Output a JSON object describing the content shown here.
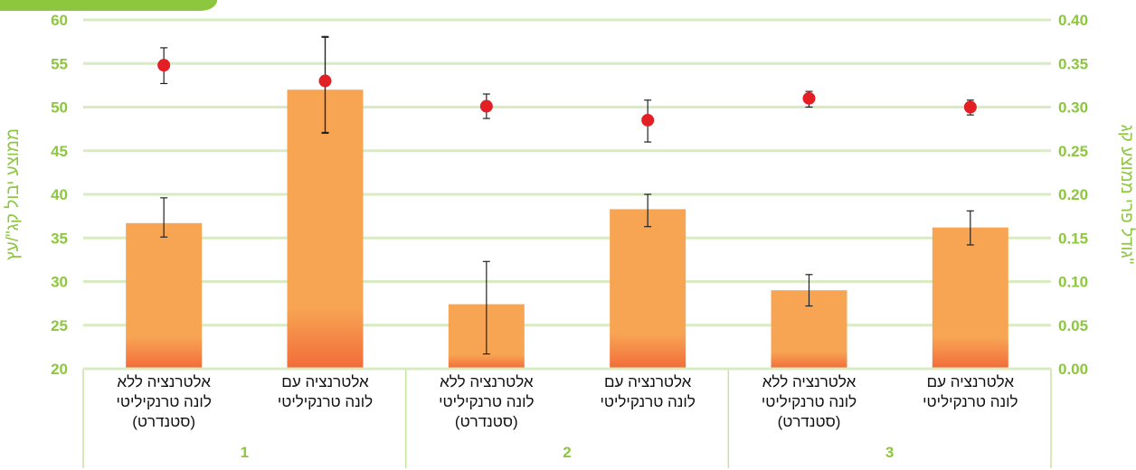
{
  "chart_data": {
    "type": "bar",
    "categories": [
      "אלטרנציה ללא\nלונה טרנקיליטי\n(סטנדרט)",
      "אלטרנציה עם\nלונה טרנקיליטי",
      "אלטרנציה ללא\nלונה טרנקיליטי\n(סטנדרט)",
      "אלטרנציה עם\nלונה טרנקיליטי",
      "אלטרנציה ללא\nלונה טרנקיליטי\n(סטנדרט)",
      "אלטרנציה עם\nלונה טרנקיליטי"
    ],
    "groups": [
      "1",
      "2",
      "3"
    ],
    "ylabel": "ממוצע יבול קג\"/עץ",
    "y2label": "גודל פרי ממוצע קג\"",
    "ylim": [
      20,
      60
    ],
    "yticks": [
      "20",
      "25",
      "30",
      "35",
      "40",
      "45",
      "50",
      "55",
      "60"
    ],
    "y2lim": [
      0,
      0.4
    ],
    "y2ticks": [
      "0.00",
      "0.05",
      "0.10",
      "0.15",
      "0.20",
      "0.25",
      "0.30",
      "0.35",
      "0.40"
    ],
    "series": [
      {
        "type": "bar",
        "axis": "left",
        "values": [
          36.7,
          52.0,
          27.4,
          38.3,
          29.0,
          36.2
        ],
        "errors": [
          [
            35.1,
            39.6
          ],
          [
            47.1,
            58.1
          ],
          [
            21.7,
            32.3
          ],
          [
            36.3,
            40.0
          ],
          [
            27.2,
            30.8
          ],
          [
            34.2,
            38.1
          ]
        ]
      },
      {
        "type": "scatter",
        "axis": "right",
        "values": [
          0.348,
          0.33,
          0.301,
          0.285,
          0.31,
          0.3
        ],
        "errors": [
          [
            0.327,
            0.368
          ],
          [
            0.27,
            0.38
          ],
          [
            0.287,
            0.315
          ],
          [
            0.26,
            0.308
          ],
          [
            0.3,
            0.318
          ],
          [
            0.291,
            0.308
          ]
        ]
      }
    ],
    "grid": true,
    "colors": {
      "bar": "#f7a553",
      "bar_base": "#f26b3a",
      "point": "#e31e24",
      "axis_text": "#8dc63f",
      "grid": "#d8ecc2",
      "category_text": "#111111"
    }
  }
}
